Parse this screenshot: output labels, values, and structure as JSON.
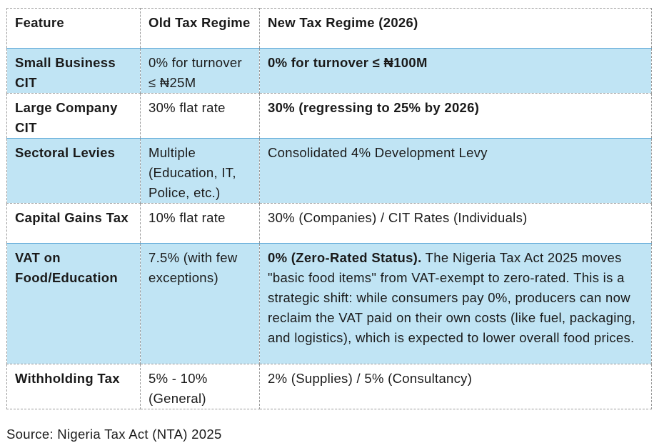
{
  "table": {
    "headers": [
      "Feature",
      "Old Tax Regime",
      "New Tax Regime (2026)"
    ],
    "rows": [
      {
        "feature": "Small Business CIT",
        "old": "0% for turnover ≤ ₦25M",
        "new_bold": "0% for turnover ≤ ₦100M",
        "new": "",
        "shaded": true
      },
      {
        "feature": "Large Company CIT",
        "old": "30% flat rate",
        "new_bold": "30% (regressing to 25% by 2026)",
        "new": "",
        "shaded": false
      },
      {
        "feature": "Sectoral Levies",
        "old": "Multiple (Education, IT, Police, etc.)",
        "new_bold": "",
        "new": "Consolidated 4% Development Levy",
        "shaded": true
      },
      {
        "feature": "Capital Gains Tax",
        "old": "10% flat rate",
        "new_bold": "",
        "new": "30% (Companies) / CIT Rates (Individuals)",
        "shaded": false
      },
      {
        "feature": "VAT on Food/Education",
        "old": "7.5% (with few exceptions)",
        "new_bold": "0% (Zero-Rated Status).",
        "new": " The Nigeria Tax Act 2025 moves \"basic food items\" from VAT-exempt to zero-rated. This is a strategic shift: while consumers pay 0%, producers can now reclaim the VAT paid on their own costs (like fuel, packaging, and logistics), which is expected to lower overall food prices.",
        "shaded": true
      },
      {
        "feature": "Withholding Tax",
        "old": "5% - 10% (General)",
        "new_bold": "",
        "new": "2% (Supplies) / 5% (Consultancy)",
        "shaded": false
      }
    ]
  },
  "source": "Source: Nigeria Tax Act (NTA) 2025",
  "colors": {
    "shade": "#c0e4f4",
    "border": "#9a9a9a"
  }
}
